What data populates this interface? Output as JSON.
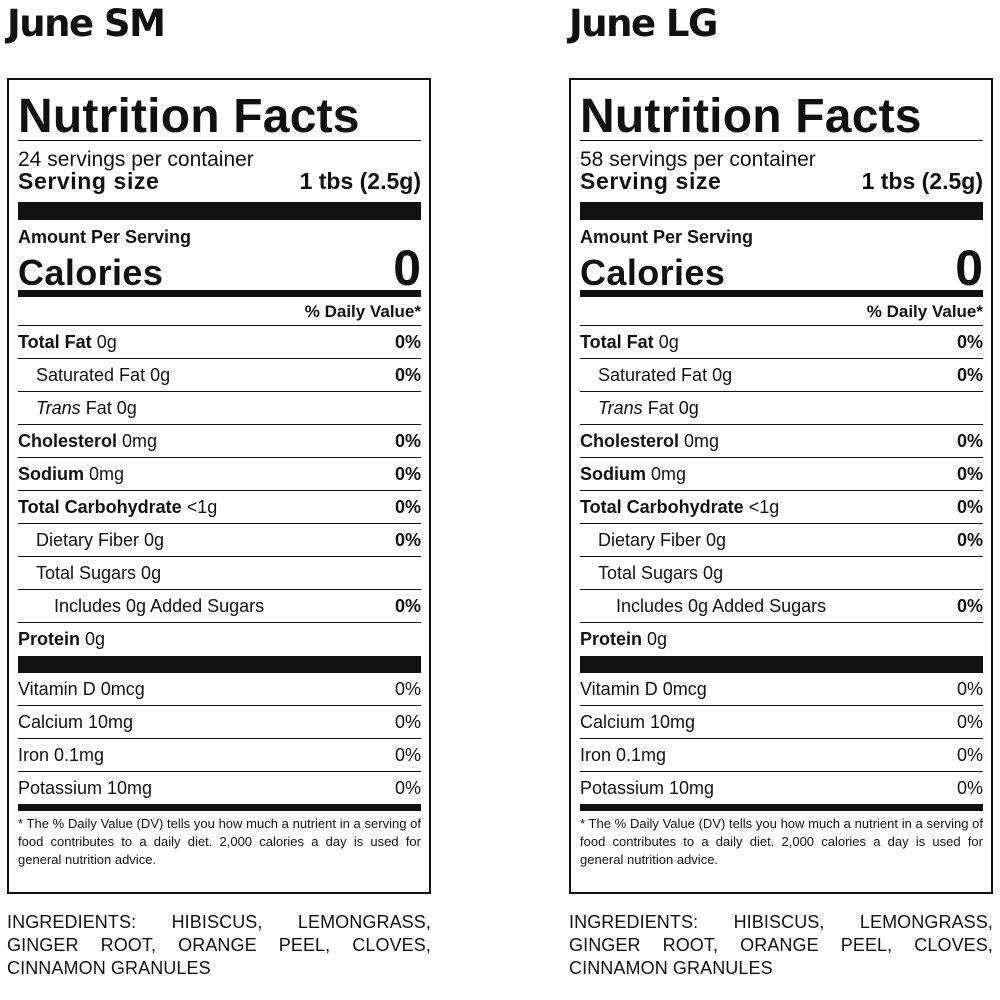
{
  "panels": [
    {
      "product": "June SM",
      "label": {
        "title": "Nutrition Facts",
        "servings": "24 servings per container",
        "serving_size_label": "Serving size",
        "serving_size_value": "1 tbs (2.5g)",
        "amount_per_serving": "Amount Per Serving",
        "calories_label": "Calories",
        "calories_value": "0",
        "dv_header": "% Daily Value*",
        "total_fat_label": "Total Fat",
        "total_fat_amount": "0g",
        "total_fat_dv": "0%",
        "sat_fat": "Saturated Fat 0g",
        "sat_fat_dv": "0%",
        "trans_fat_word": "Trans",
        "trans_fat_rest": "Fat 0g",
        "cholesterol_label": "Cholesterol",
        "cholesterol_amount": "0mg",
        "cholesterol_dv": "0%",
        "sodium_label": "Sodium",
        "sodium_amount": "0mg",
        "sodium_dv": "0%",
        "carb_label": "Total Carbohydrate",
        "carb_amount": "<1g",
        "carb_dv": "0%",
        "fiber": "Dietary Fiber 0g",
        "fiber_dv": "0%",
        "sugars": "Total Sugars 0g",
        "added_sugars": "Includes 0g Added Sugars",
        "added_sugars_dv": "0%",
        "protein_label": "Protein",
        "protein_amount": "0g",
        "vitamin_d": "Vitamin D 0mcg",
        "vitamin_d_dv": "0%",
        "calcium": "Calcium 10mg",
        "calcium_dv": "0%",
        "iron": "Iron 0.1mg",
        "iron_dv": "0%",
        "potassium": "Potassium 10mg",
        "potassium_dv": "0%",
        "footnote": "* The % Daily Value (DV) tells you how much a nutrient in a serving of food contributes to a daily diet. 2,000 calories a day is used for general nutrition advice."
      },
      "ingredients": "INGREDIENTS: HIBISCUS, LEMONGRASS, GINGER ROOT, ORANGE PEEL, CLOVES, CINNAMON GRANULES"
    },
    {
      "product": "June LG",
      "label": {
        "title": "Nutrition Facts",
        "servings": "58 servings per container",
        "serving_size_label": "Serving size",
        "serving_size_value": "1 tbs (2.5g)",
        "amount_per_serving": "Amount Per Serving",
        "calories_label": "Calories",
        "calories_value": "0",
        "dv_header": "% Daily Value*",
        "total_fat_label": "Total Fat",
        "total_fat_amount": "0g",
        "total_fat_dv": "0%",
        "sat_fat": "Saturated Fat 0g",
        "sat_fat_dv": "0%",
        "trans_fat_word": "Trans",
        "trans_fat_rest": "Fat 0g",
        "cholesterol_label": "Cholesterol",
        "cholesterol_amount": "0mg",
        "cholesterol_dv": "0%",
        "sodium_label": "Sodium",
        "sodium_amount": "0mg",
        "sodium_dv": "0%",
        "carb_label": "Total Carbohydrate",
        "carb_amount": "<1g",
        "carb_dv": "0%",
        "fiber": "Dietary Fiber 0g",
        "fiber_dv": "0%",
        "sugars": "Total Sugars 0g",
        "added_sugars": "Includes 0g Added Sugars",
        "added_sugars_dv": "0%",
        "protein_label": "Protein",
        "protein_amount": "0g",
        "vitamin_d": "Vitamin D 0mcg",
        "vitamin_d_dv": "0%",
        "calcium": "Calcium 10mg",
        "calcium_dv": "0%",
        "iron": "Iron 0.1mg",
        "iron_dv": "0%",
        "potassium": "Potassium 10mg",
        "potassium_dv": "0%",
        "footnote": "* The % Daily Value (DV) tells you how much a nutrient in a serving of food contributes to a daily diet. 2,000 calories a day is used for general nutrition advice."
      },
      "ingredients": "INGREDIENTS: HIBISCUS, LEMONGRASS, GINGER ROOT, ORANGE PEEL, CLOVES, CINNAMON GRANULES"
    }
  ]
}
